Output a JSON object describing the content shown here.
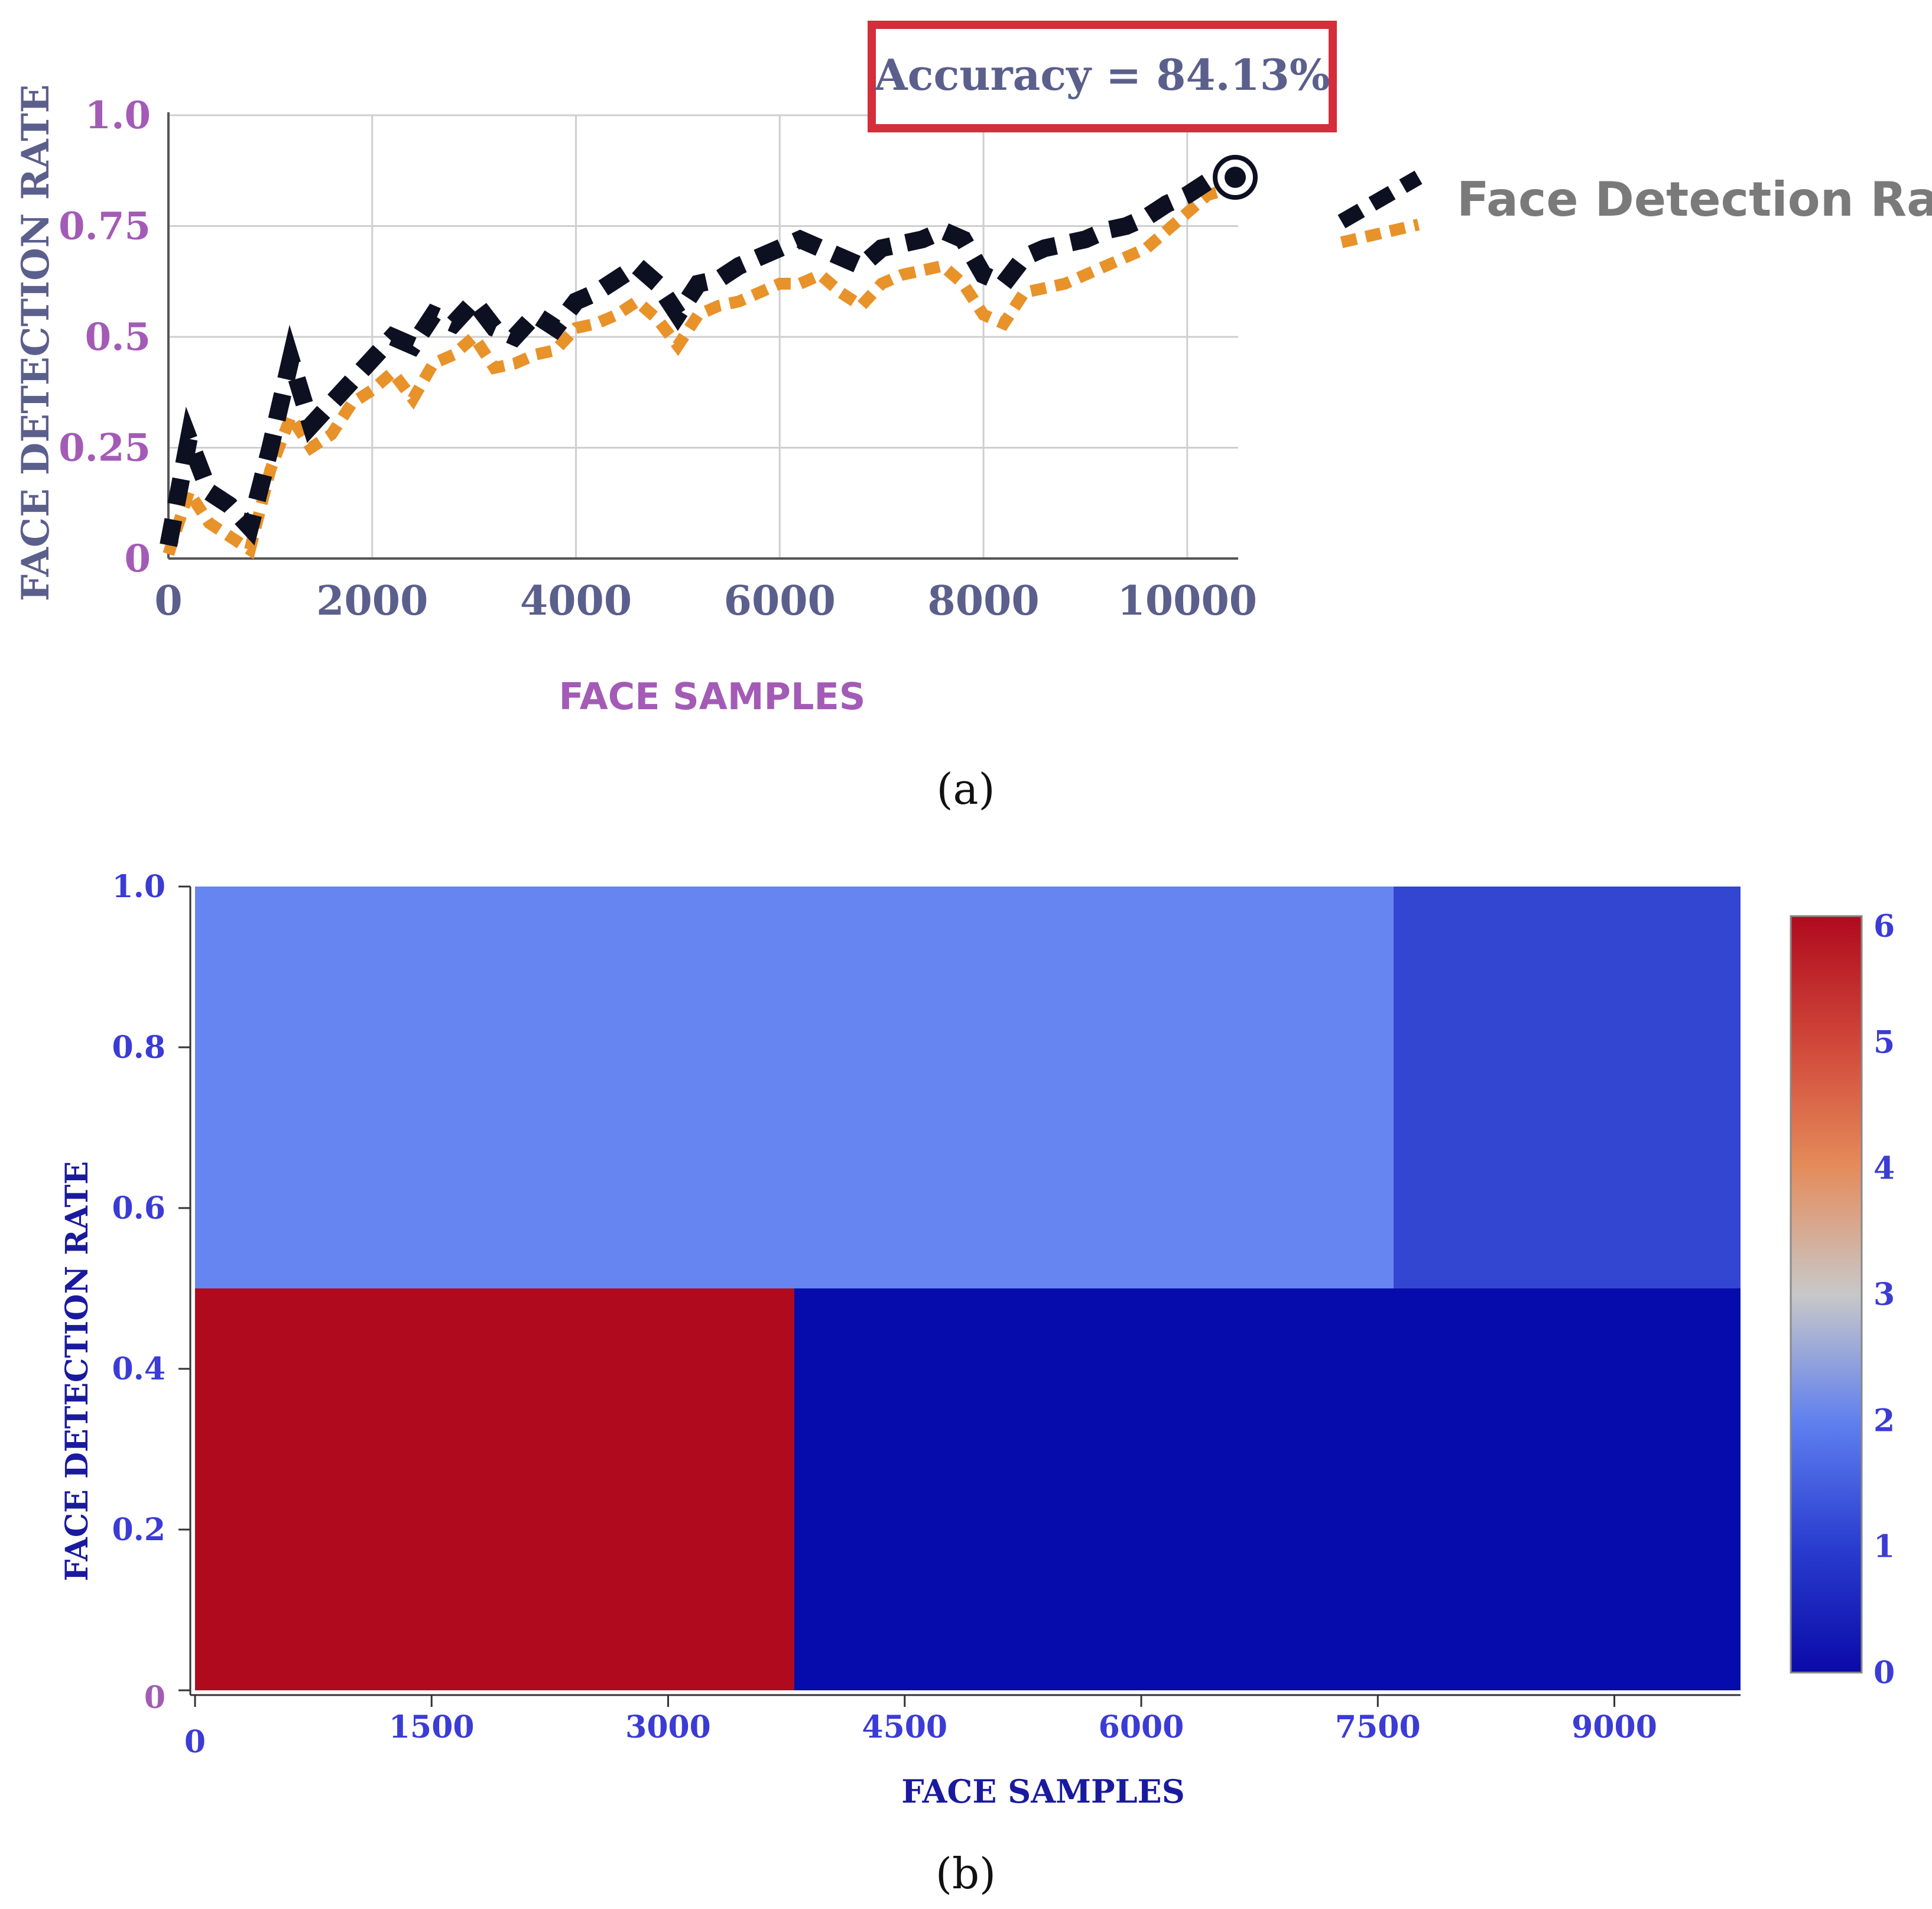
{
  "chart_data": [
    {
      "type": "line",
      "panel_label": "(a)",
      "xlabel": "FACE SAMPLES",
      "ylabel": "FACE DETECTION RATE",
      "xlim": [
        0,
        10500
      ],
      "ylim": [
        0,
        1.0
      ],
      "x_ticks": [
        "0",
        "2000",
        "4000",
        "6000",
        "8000",
        "10000"
      ],
      "y_ticks": [
        "0",
        "0.25",
        "0.5",
        "0.75",
        "1.0"
      ],
      "grid": true,
      "legend_position": "right",
      "annotation": "Accuracy = 84.13%",
      "colors": {
        "black_series": "#0d1020",
        "orange_series": "#e8922a",
        "annotation_border": "#d42e3a",
        "axis_text": "#5b5f8c",
        "tick_y": "#a35bb6"
      },
      "series": [
        {
          "name": "Face Detection Rate",
          "x": [
            0,
            200,
            400,
            600,
            800,
            1000,
            1200,
            1400,
            1600,
            1800,
            2000,
            2200,
            2400,
            2600,
            2800,
            3000,
            3200,
            3400,
            3600,
            3800,
            4000,
            4200,
            4400,
            4600,
            4800,
            5000,
            5200,
            5400,
            5600,
            5800,
            6000,
            6200,
            6400,
            6600,
            6800,
            7000,
            7200,
            7400,
            7600,
            7800,
            8000,
            8200,
            8400,
            8600,
            8800,
            9000,
            9200,
            9400,
            9600,
            9800,
            10000,
            10200,
            10500
          ],
          "values": [
            0.03,
            0.27,
            0.15,
            0.12,
            0.07,
            0.25,
            0.45,
            0.3,
            0.35,
            0.4,
            0.45,
            0.5,
            0.48,
            0.55,
            0.53,
            0.58,
            0.52,
            0.5,
            0.55,
            0.52,
            0.58,
            0.6,
            0.63,
            0.66,
            0.62,
            0.55,
            0.62,
            0.63,
            0.66,
            0.68,
            0.7,
            0.72,
            0.7,
            0.68,
            0.66,
            0.7,
            0.71,
            0.72,
            0.74,
            0.72,
            0.64,
            0.62,
            0.68,
            0.7,
            0.71,
            0.72,
            0.74,
            0.75,
            0.77,
            0.8,
            0.82,
            0.85,
            0.86
          ]
        },
        {
          "name": "",
          "x": [
            0,
            200,
            400,
            600,
            800,
            1000,
            1200,
            1400,
            1600,
            1800,
            2000,
            2200,
            2400,
            2600,
            2800,
            3000,
            3200,
            3400,
            3600,
            3800,
            4000,
            4200,
            4400,
            4600,
            4800,
            5000,
            5200,
            5400,
            5600,
            5800,
            6000,
            6200,
            6400,
            6600,
            6800,
            7000,
            7200,
            7400,
            7600,
            7800,
            8000,
            8200,
            8400,
            8600,
            8800,
            9000,
            9200,
            9400,
            9600,
            9800,
            10000,
            10200,
            10500
          ],
          "values": [
            0.01,
            0.15,
            0.08,
            0.05,
            0.02,
            0.2,
            0.32,
            0.25,
            0.28,
            0.35,
            0.38,
            0.42,
            0.36,
            0.44,
            0.46,
            0.5,
            0.43,
            0.44,
            0.46,
            0.47,
            0.52,
            0.53,
            0.55,
            0.58,
            0.54,
            0.48,
            0.55,
            0.57,
            0.58,
            0.6,
            0.62,
            0.62,
            0.64,
            0.6,
            0.57,
            0.62,
            0.64,
            0.65,
            0.66,
            0.62,
            0.55,
            0.53,
            0.6,
            0.61,
            0.62,
            0.64,
            0.66,
            0.68,
            0.7,
            0.74,
            0.78,
            0.82,
            0.84
          ]
        }
      ]
    },
    {
      "type": "heatmap",
      "panel_label": "(b)",
      "xlabel": "FACE SAMPLES",
      "ylabel": "FACE DETECTION RATE",
      "xlim": [
        0,
        9800
      ],
      "ylim": [
        0,
        1.0
      ],
      "x_ticks": [
        "0",
        "1500",
        "3000",
        "4500",
        "6000",
        "7500",
        "9000"
      ],
      "y_ticks": [
        "0",
        "0.2",
        "0.4",
        "0.6",
        "0.8",
        "1.0"
      ],
      "colorbar_ticks": [
        "0",
        "1",
        "2",
        "3",
        "4",
        "5",
        "6"
      ],
      "colorbar_range": [
        0,
        6
      ],
      "cells": [
        {
          "x0": 0,
          "x1": 3800,
          "y0": 0,
          "y1": 0.5,
          "value": 6
        },
        {
          "x0": 3800,
          "x1": 9800,
          "y0": 0,
          "y1": 0.5,
          "value": 0
        },
        {
          "x0": 0,
          "x1": 7600,
          "y0": 0.5,
          "y1": 1.0,
          "value": 2
        },
        {
          "x0": 7600,
          "x1": 9800,
          "y0": 0.5,
          "y1": 1.0,
          "value": 1
        }
      ],
      "colors": {
        "axis_text": "#3b3bd6",
        "tick_zero": "#a35bb6",
        "label_dark": "#1a1a9e"
      }
    }
  ]
}
